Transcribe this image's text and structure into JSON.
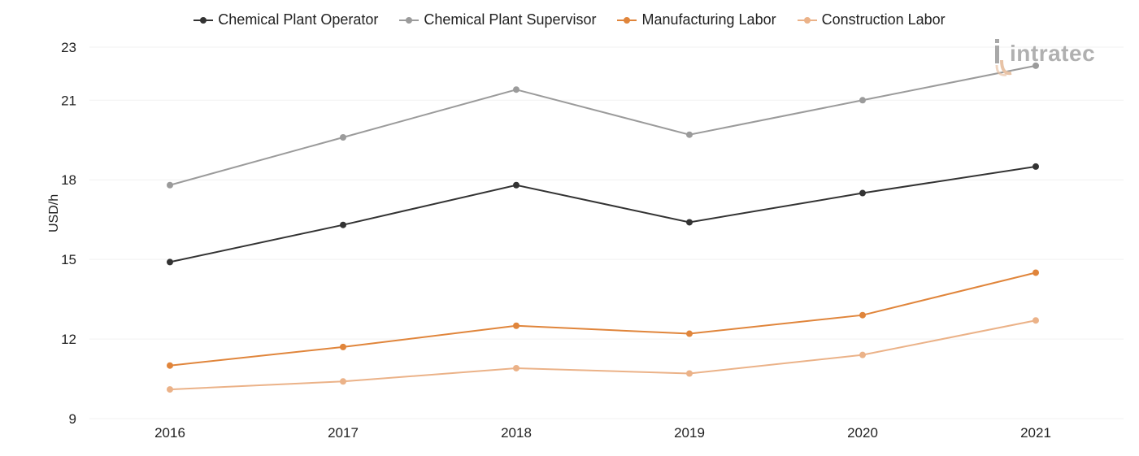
{
  "chart_data": {
    "type": "line",
    "title": "",
    "xlabel": "",
    "ylabel": "USD/h",
    "x": [
      "2016",
      "2017",
      "2018",
      "2019",
      "2020",
      "2021"
    ],
    "y_ticks": [
      9,
      12,
      15,
      18,
      21,
      23
    ],
    "ylim": [
      9,
      23
    ],
    "grid": true,
    "legend_position": "top-center",
    "series": [
      {
        "name": "Chemical Plant Operator",
        "color": "#333333",
        "values": [
          14.9,
          16.3,
          17.8,
          16.4,
          17.5,
          18.5
        ]
      },
      {
        "name": "Chemical Plant Supervisor",
        "color": "#9b9b9b",
        "values": [
          17.8,
          19.6,
          21.4,
          19.7,
          21.0,
          22.3
        ]
      },
      {
        "name": "Manufacturing Labor",
        "color": "#e0853b",
        "values": [
          11.0,
          11.7,
          12.5,
          12.2,
          12.9,
          14.5
        ]
      },
      {
        "name": "Construction Labor",
        "color": "#ebb288",
        "values": [
          10.1,
          10.4,
          10.9,
          10.7,
          11.4,
          12.7
        ]
      }
    ]
  },
  "logo": {
    "text": "intratec",
    "icon": "intratec-logo-icon"
  }
}
